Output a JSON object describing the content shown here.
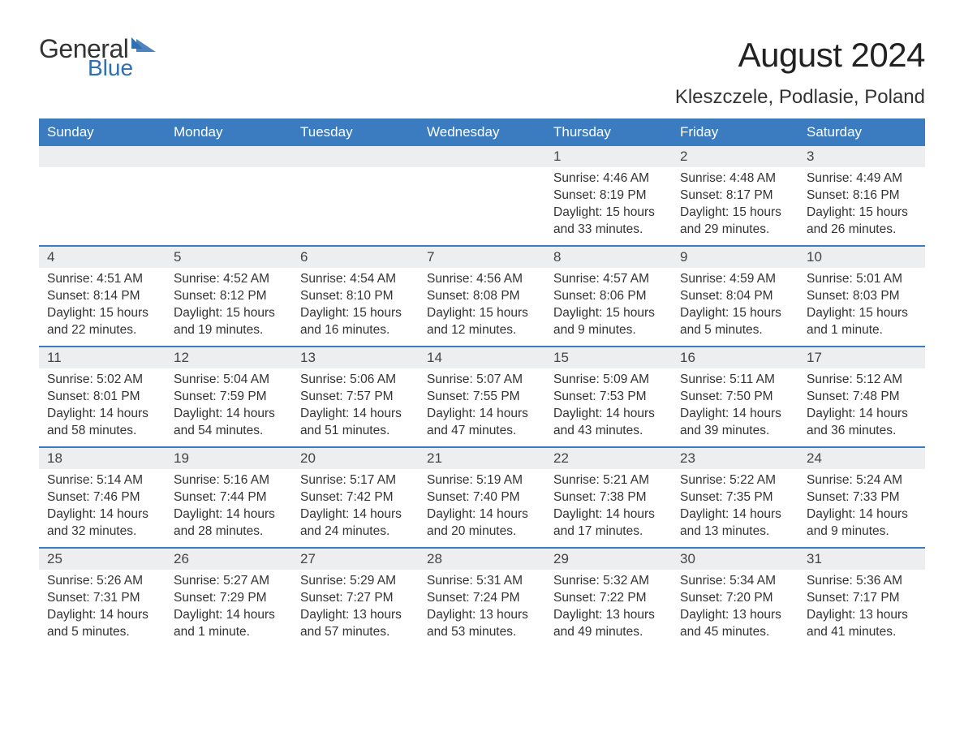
{
  "logo": {
    "text1": "General",
    "text2": "Blue",
    "icon_color": "#2f6fb3"
  },
  "title": "August 2024",
  "subtitle": "Kleszczele, Podlasie, Poland",
  "colors": {
    "header_bg": "#3b7cc0",
    "header_text": "#ffffff",
    "daynum_bg": "#eceeef",
    "body_text": "#333333",
    "week_border": "#3b7cc0",
    "page_bg": "#ffffff"
  },
  "day_labels": [
    "Sunday",
    "Monday",
    "Tuesday",
    "Wednesday",
    "Thursday",
    "Friday",
    "Saturday"
  ],
  "weeks": [
    [
      {
        "day": null
      },
      {
        "day": null
      },
      {
        "day": null
      },
      {
        "day": null
      },
      {
        "day": "1",
        "sunrise": "Sunrise: 4:46 AM",
        "sunset": "Sunset: 8:19 PM",
        "daylight": "Daylight: 15 hours and 33 minutes."
      },
      {
        "day": "2",
        "sunrise": "Sunrise: 4:48 AM",
        "sunset": "Sunset: 8:17 PM",
        "daylight": "Daylight: 15 hours and 29 minutes."
      },
      {
        "day": "3",
        "sunrise": "Sunrise: 4:49 AM",
        "sunset": "Sunset: 8:16 PM",
        "daylight": "Daylight: 15 hours and 26 minutes."
      }
    ],
    [
      {
        "day": "4",
        "sunrise": "Sunrise: 4:51 AM",
        "sunset": "Sunset: 8:14 PM",
        "daylight": "Daylight: 15 hours and 22 minutes."
      },
      {
        "day": "5",
        "sunrise": "Sunrise: 4:52 AM",
        "sunset": "Sunset: 8:12 PM",
        "daylight": "Daylight: 15 hours and 19 minutes."
      },
      {
        "day": "6",
        "sunrise": "Sunrise: 4:54 AM",
        "sunset": "Sunset: 8:10 PM",
        "daylight": "Daylight: 15 hours and 16 minutes."
      },
      {
        "day": "7",
        "sunrise": "Sunrise: 4:56 AM",
        "sunset": "Sunset: 8:08 PM",
        "daylight": "Daylight: 15 hours and 12 minutes."
      },
      {
        "day": "8",
        "sunrise": "Sunrise: 4:57 AM",
        "sunset": "Sunset: 8:06 PM",
        "daylight": "Daylight: 15 hours and 9 minutes."
      },
      {
        "day": "9",
        "sunrise": "Sunrise: 4:59 AM",
        "sunset": "Sunset: 8:04 PM",
        "daylight": "Daylight: 15 hours and 5 minutes."
      },
      {
        "day": "10",
        "sunrise": "Sunrise: 5:01 AM",
        "sunset": "Sunset: 8:03 PM",
        "daylight": "Daylight: 15 hours and 1 minute."
      }
    ],
    [
      {
        "day": "11",
        "sunrise": "Sunrise: 5:02 AM",
        "sunset": "Sunset: 8:01 PM",
        "daylight": "Daylight: 14 hours and 58 minutes."
      },
      {
        "day": "12",
        "sunrise": "Sunrise: 5:04 AM",
        "sunset": "Sunset: 7:59 PM",
        "daylight": "Daylight: 14 hours and 54 minutes."
      },
      {
        "day": "13",
        "sunrise": "Sunrise: 5:06 AM",
        "sunset": "Sunset: 7:57 PM",
        "daylight": "Daylight: 14 hours and 51 minutes."
      },
      {
        "day": "14",
        "sunrise": "Sunrise: 5:07 AM",
        "sunset": "Sunset: 7:55 PM",
        "daylight": "Daylight: 14 hours and 47 minutes."
      },
      {
        "day": "15",
        "sunrise": "Sunrise: 5:09 AM",
        "sunset": "Sunset: 7:53 PM",
        "daylight": "Daylight: 14 hours and 43 minutes."
      },
      {
        "day": "16",
        "sunrise": "Sunrise: 5:11 AM",
        "sunset": "Sunset: 7:50 PM",
        "daylight": "Daylight: 14 hours and 39 minutes."
      },
      {
        "day": "17",
        "sunrise": "Sunrise: 5:12 AM",
        "sunset": "Sunset: 7:48 PM",
        "daylight": "Daylight: 14 hours and 36 minutes."
      }
    ],
    [
      {
        "day": "18",
        "sunrise": "Sunrise: 5:14 AM",
        "sunset": "Sunset: 7:46 PM",
        "daylight": "Daylight: 14 hours and 32 minutes."
      },
      {
        "day": "19",
        "sunrise": "Sunrise: 5:16 AM",
        "sunset": "Sunset: 7:44 PM",
        "daylight": "Daylight: 14 hours and 28 minutes."
      },
      {
        "day": "20",
        "sunrise": "Sunrise: 5:17 AM",
        "sunset": "Sunset: 7:42 PM",
        "daylight": "Daylight: 14 hours and 24 minutes."
      },
      {
        "day": "21",
        "sunrise": "Sunrise: 5:19 AM",
        "sunset": "Sunset: 7:40 PM",
        "daylight": "Daylight: 14 hours and 20 minutes."
      },
      {
        "day": "22",
        "sunrise": "Sunrise: 5:21 AM",
        "sunset": "Sunset: 7:38 PM",
        "daylight": "Daylight: 14 hours and 17 minutes."
      },
      {
        "day": "23",
        "sunrise": "Sunrise: 5:22 AM",
        "sunset": "Sunset: 7:35 PM",
        "daylight": "Daylight: 14 hours and 13 minutes."
      },
      {
        "day": "24",
        "sunrise": "Sunrise: 5:24 AM",
        "sunset": "Sunset: 7:33 PM",
        "daylight": "Daylight: 14 hours and 9 minutes."
      }
    ],
    [
      {
        "day": "25",
        "sunrise": "Sunrise: 5:26 AM",
        "sunset": "Sunset: 7:31 PM",
        "daylight": "Daylight: 14 hours and 5 minutes."
      },
      {
        "day": "26",
        "sunrise": "Sunrise: 5:27 AM",
        "sunset": "Sunset: 7:29 PM",
        "daylight": "Daylight: 14 hours and 1 minute."
      },
      {
        "day": "27",
        "sunrise": "Sunrise: 5:29 AM",
        "sunset": "Sunset: 7:27 PM",
        "daylight": "Daylight: 13 hours and 57 minutes."
      },
      {
        "day": "28",
        "sunrise": "Sunrise: 5:31 AM",
        "sunset": "Sunset: 7:24 PM",
        "daylight": "Daylight: 13 hours and 53 minutes."
      },
      {
        "day": "29",
        "sunrise": "Sunrise: 5:32 AM",
        "sunset": "Sunset: 7:22 PM",
        "daylight": "Daylight: 13 hours and 49 minutes."
      },
      {
        "day": "30",
        "sunrise": "Sunrise: 5:34 AM",
        "sunset": "Sunset: 7:20 PM",
        "daylight": "Daylight: 13 hours and 45 minutes."
      },
      {
        "day": "31",
        "sunrise": "Sunrise: 5:36 AM",
        "sunset": "Sunset: 7:17 PM",
        "daylight": "Daylight: 13 hours and 41 minutes."
      }
    ]
  ]
}
